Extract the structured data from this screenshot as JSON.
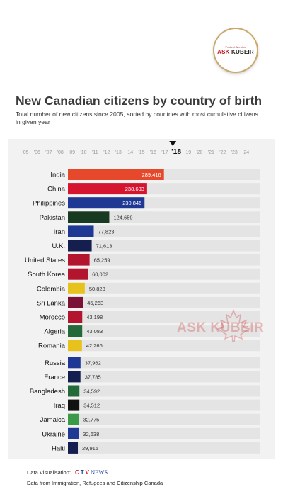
{
  "logo": {
    "tagline": "Perfect Mentor",
    "brand_red": "ASK",
    "brand_dark": "KUBEIR"
  },
  "watermark": {
    "text": "ASK KUBEIR"
  },
  "chart_data": {
    "type": "bar",
    "orientation": "horizontal",
    "title": "New Canadian citizens by country of birth",
    "subtitle": "Total number of new citizens since 2005, sorted by countries with most cumulative citizens in given year",
    "timeline": {
      "years": [
        "'05",
        "'06",
        "'07",
        "'08",
        "'09",
        "'10",
        "'11",
        "'12",
        "'13",
        "'14",
        "'15",
        "'16",
        "'17",
        "'18",
        "'19",
        "'20",
        "'21",
        "'22",
        "'23",
        "'24"
      ],
      "current": "'18"
    },
    "categories": [
      "India",
      "China",
      "Philippines",
      "Pakistan",
      "Iran",
      "U.K.",
      "United States",
      "South Korea",
      "Colombia",
      "Sri Lanka",
      "Morocco",
      "Algeria",
      "Romania",
      "Russia",
      "France",
      "Bangladesh",
      "Iraq",
      "Jamaica",
      "Ukraine",
      "Haiti"
    ],
    "values": [
      289416,
      238603,
      230846,
      124659,
      77823,
      71613,
      65259,
      60002,
      50823,
      45263,
      43198,
      43083,
      42266,
      37962,
      37785,
      34592,
      34512,
      32775,
      32638,
      29915
    ],
    "value_labels": [
      "289,416",
      "238,603",
      "230,846",
      "124,659",
      "77,823",
      "71,613",
      "65,259",
      "60,002",
      "50,823",
      "45,263",
      "43,198",
      "43,083",
      "42,266",
      "37,962",
      "37,785",
      "34,592",
      "34,512",
      "32,775",
      "32,638",
      "29,915"
    ],
    "colors": [
      "#e5482a",
      "#d5142f",
      "#1f3894",
      "#173a21",
      "#1f3894",
      "#141f4f",
      "#b3152e",
      "#b3152e",
      "#e8c21c",
      "#7b1135",
      "#b3152e",
      "#24693a",
      "#e8c21c",
      "#1f3894",
      "#141f4f",
      "#24693a",
      "#111111",
      "#3a9a47",
      "#1f3894",
      "#141f4f"
    ],
    "xlim": [
      0,
      580000
    ],
    "grid": false,
    "legend": "none"
  },
  "footer": {
    "vis_label": "Data Visualisation:",
    "ctv_c": "C",
    "ctv_t": "T",
    "ctv_v": "V",
    "ctv_news": "NEWS",
    "source": "Data from Immigration, Refugees and Citizenship Canada"
  }
}
